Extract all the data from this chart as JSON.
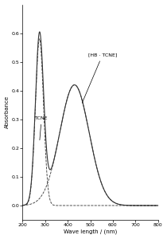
{
  "title": "",
  "xlabel": "Wave length / (nm)",
  "ylabel": "Absorbance",
  "xlim": [
    200,
    800
  ],
  "ylim": [
    -0.05,
    0.7
  ],
  "yticks": [
    0.0,
    0.1,
    0.2,
    0.3,
    0.4,
    0.5,
    0.6
  ],
  "xticks": [
    200,
    300,
    400,
    500,
    600,
    700,
    800
  ],
  "tcne_label": "TCNE",
  "ct_label": "[HB · TCNE]",
  "background_color": "#ffffff",
  "line_color": "#333333",
  "figsize": [
    2.1,
    3.0
  ],
  "dpi": 100
}
